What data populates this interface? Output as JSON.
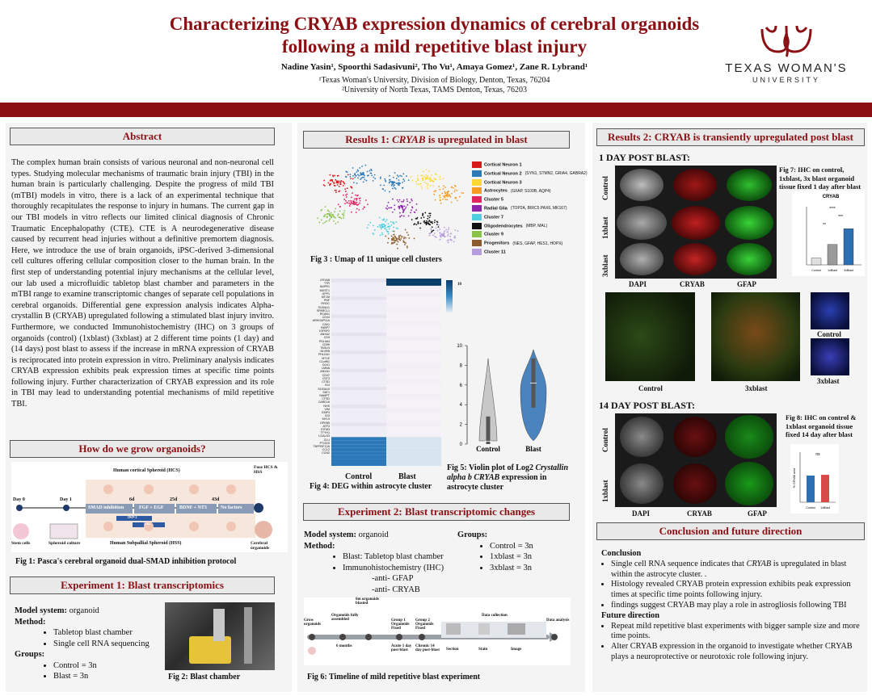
{
  "header": {
    "title_line1": "Characterizing CRYAB expression dynamics of cerebral organoids",
    "title_line2": "following a mild repetitive blast injury",
    "authors": "Nadine Yasin¹, Spoorthi Sadasivuni², Tho Vu¹, Amaya Gomez¹, Zane R. Lybrand¹",
    "affiliation1": "¹Texas Woman's University, Division of Biology, Denton, Texas, 76204",
    "affiliation2": "²University of North Texas, TAMS Denton, Texas, 76203",
    "logo_line1": "TEXAS WOMAN'S",
    "logo_line2": "UNIVERSITY"
  },
  "abstract": {
    "heading": "Abstract",
    "text": "The complex human brain consists of various neuronal and non-neuronal cell types. Studying molecular mechanisms of traumatic brain injury (TBI) in the human brain is particularly challenging. Despite the progress of mild TBI (mTBI) models in vitro, there is a lack of an experimental technique that thoroughly recapitulates the response to injury in humans. The current gap in our TBI models in vitro reflects our limited clinical diagnosis of Chronic Traumatic Encephalopathy (CTE). CTE is A neurodegenerative disease caused by recurrent head injuries without a definitive premortem diagnosis. Here, we introduce the use of brain organoids, iPSC-derived 3-dimensional cell cultures offering cellular composition closer to the human brain. In the first step of understanding potential injury mechanisms at the cellular level, our lab used a microfluidic tabletop blast chamber and parameters in the mTBI range to examine transcriptomic changes of separate cell populations in cerebral organoids. Differential gene expression analysis indicates Alpha-crystallin B (CRYAB) upregulated following a stimulated blast injury invitro. Furthermore, we conducted Immunohistochemistry (IHC) on 3 groups of organoids (control) (1xblast) (3xblast) at 2 different time points (1 day) and (14 days) post blast to assess if the increase in mRNA expression of CRYAB is reciprocated into protein expression in vitro. Preliminary analysis indicates CRYAB expression exhibits peak expression times at specific time points following injury. Further characterization of CRYAB expression and its role in TBI may lead to understanding potential mechanisms of mild repetitive TBI."
  },
  "grow": {
    "heading": "How do we grow organoids?",
    "hcs": "Human cortical Spheroid (HCS)",
    "hss": "Human Subpallial Spheroid (HSS)",
    "fuse": "Fuse HCS & HSS",
    "day0": "Day 0",
    "day1": "Day 1",
    "d6": "6d",
    "d25": "25d",
    "d43": "43d",
    "smad": "SMAD inhibition",
    "fgf": "FGF + EGF",
    "bdnf": "BDNF + NT3",
    "nofactors": "No factors",
    "iwp2": "IWP-2",
    "sag": "SAG",
    "stem": "Stem cells",
    "spheroid": "Spheroid culture",
    "cerebral": "Cerebral organoids",
    "caption": "Fig 1: Pasca's cerebral organoid dual-SMAD inhibition protocol"
  },
  "exp1": {
    "heading": "Experiment 1: Blast transcriptomics",
    "model_label": "Model system:",
    "model_value": " organoid",
    "method_label": "Method:",
    "methods": [
      "Tabletop blast chamber",
      "Single cell RNA sequencing"
    ],
    "groups_label": "Groups:",
    "groups": [
      "Control = 3n",
      "Blast = 3n"
    ],
    "fig2": "Fig 2: Blast chamber"
  },
  "results1": {
    "heading_pre": "Results 1: ",
    "heading_gene": "CRYAB",
    "heading_post": " is upregulated in blast",
    "fig3": "Fig 3 : Umap of 11 unique cell clusters",
    "clusters": [
      {
        "name": "Cortical Neuron 1",
        "color": "#d7191c",
        "note": ""
      },
      {
        "name": "Cortical Neuron 2",
        "color": "#2c7bb6",
        "note": "(SYN1, STMN2, GRIA4, GABRA2)"
      },
      {
        "name": "Cortical Neuron 3",
        "color": "#fdd835",
        "note": ""
      },
      {
        "name": "Astrocytes",
        "color": "#f59b22",
        "note": "(GFAP, S100B, AQP4)"
      },
      {
        "name": "Cluster 5",
        "color": "#e0245e",
        "note": ""
      },
      {
        "name": "Radial Glia",
        "color": "#8e24aa",
        "note": "(TOP2A, BIRC5 PAX6, MK167)"
      },
      {
        "name": "Cluster 7",
        "color": "#4dd0e1",
        "note": ""
      },
      {
        "name": "Oligodendrocytes",
        "color": "#111111",
        "note": "(MBP, MAL)"
      },
      {
        "name": "Cluster 9",
        "color": "#8bc34a",
        "note": ""
      },
      {
        "name": "Progenitors",
        "color": "#8d5a2b",
        "note": "(NES, GFAP, HES1, HOPX)"
      },
      {
        "name": "Cluster 11",
        "color": "#b39ddb",
        "note": ""
      }
    ],
    "genes": [
      "CRYAB",
      "TTR",
      "NUPR1",
      "MGST1",
      "UPP1",
      "MT1M",
      "PNF",
      "RHOC",
      "S100A11",
      "SPARCL1",
      "RCAN1",
      "CD44",
      "ARHGAP11A",
      "CAV1",
      "FABP7",
      "IGFBP2",
      "ANXA2",
      "CD9",
      "PDLIM4",
      "CD99",
      "TAGLN",
      "BLVRB",
      "PHLDA1",
      "MT1E",
      "C1orf61",
      "DLK1",
      "LMNA",
      "ANXA1",
      "CD47",
      "CST3",
      "CTSD",
      "ID4",
      "S100A10",
      "SAT1",
      "NAMPT",
      "CTSD",
      "CARD16",
      "NHS",
      "VIM",
      "EMP3",
      "ID3",
      "MYL9",
      "DPEB5",
      "ATF3",
      "EITM3",
      "TTYH1",
      "LGALS3",
      "CLU",
      "PTGDS",
      "TNFRSF12A",
      "CCL2",
      "CCN2"
    ],
    "scale_max": "10",
    "fig4": "Fig 4: DEG within astrocyte cluster",
    "control_label": "Control",
    "blast_label": "Blast",
    "fig5_pre": "Fig 5: Violin plot of Log2 ",
    "fig5_italic": "Crystallin alpha b CRYAB",
    "fig5_post": " expression in astrocyte cluster"
  },
  "chart_data": {
    "type": "violin",
    "title": "",
    "categories": [
      "Control",
      "Blast"
    ],
    "ylim": [
      0,
      10
    ],
    "yticks": [
      0,
      2,
      4,
      6,
      8,
      10
    ],
    "series": [
      {
        "name": "Control",
        "color": "#c0c0c0",
        "median": 0.3,
        "max": 8.7
      },
      {
        "name": "Blast",
        "color": "#2c6fb3",
        "median": 6.2,
        "max": 9.6
      }
    ]
  },
  "exp2": {
    "heading": "Experiment 2: Blast transcriptomic changes",
    "model_label": "Model system:",
    "model_value": " organoid",
    "method_label": "Method:",
    "methods": [
      "Blast: Tabletop blast chamber",
      "Immunohistochemistry (IHC)"
    ],
    "anti1": "-anti- GFAP",
    "anti2": "-anti- CRYAB",
    "groups_label": "Groups:",
    "groups": [
      "Control = 3n",
      "1xblast = 3n",
      "3xblast = 3n"
    ],
    "timeline": {
      "grow": "Grow organoids",
      "fully": "Organoids fully assembled",
      "sixm": "6m organoids blasted",
      "g1": "Group 1 Organoids Fixed",
      "g2": "Group 2 Organoids Fixed",
      "collection": "Data collection",
      "analysis": "Data analysis",
      "months": "6 months",
      "acute": "Acute 1 day post-blast",
      "chronic": "Chronic 14 day post-blast",
      "section": "Section",
      "stain": "Stain",
      "image": "Image"
    },
    "fig6": "Fig 6: Timeline of mild repetitive blast experiment"
  },
  "results2": {
    "heading": "Results 2: CRYAB is transiently upregulated post blast",
    "day1": "1 DAY POST BLAST:",
    "day14": "14 DAY POST BLAST:",
    "row_control": "Control",
    "row_1x": "1xblast",
    "row_3x": "3xblast",
    "dapi": "DAPI",
    "cryab": "CRYAB",
    "gfap": "GFAP",
    "fig7": "Fig 7: IHC on control, 1xblast, 3x blast organoid tissue fixed 1 day after blast",
    "fig8": "Fig 8: IHC on control & 1xblast organoid tissue fixed 14 day after blast",
    "bar7_title": "CRYAB",
    "bar7_stars": [
      "****",
      "***",
      "**"
    ],
    "bar8_ns": "ns",
    "bar8_ylabel": "% CRYAB area",
    "bar_x": [
      "Control",
      "1xBlast",
      "3xBlast"
    ],
    "bar8_x": [
      "Control",
      "1xBlast"
    ],
    "zoom_control": "Control",
    "zoom_3x": "3xblast",
    "side_control": "Control",
    "side_3x": "3xblast"
  },
  "conclusion": {
    "heading": "Conclusion and future direction",
    "conclusion_label": "Conclusion",
    "c1_pre": "Single cell RNA sequence indicates that ",
    "c1_gene": "CRYAB",
    "c1_post": " is upregulated in blast within the  astrocyte cluster. .",
    "c2": "Histology revealed CRYAB protein expression exhibits peak expression times at specific time points following injury.",
    "c3": "findings suggest  CRYAB may play a role in astrogliosis following TBI",
    "future_label": "Future direction",
    "f1": "Repeat mild repetitive blast experiments with bigger sample size and more time points.",
    "f2": "Alter CRYAB expression in the organoid to investigate whether CRYAB plays a neuroprotective or neurotoxic role following injury."
  }
}
